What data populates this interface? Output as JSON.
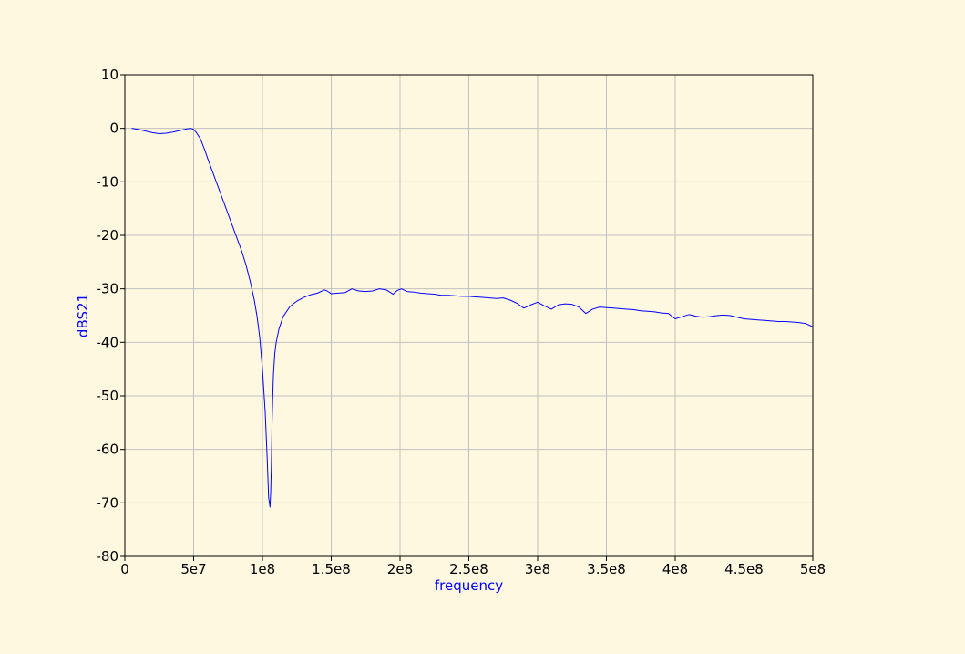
{
  "chart_data": {
    "type": "line",
    "title": "",
    "xlabel": "frequency",
    "ylabel": "dBS21",
    "xlim": [
      0,
      500000000
    ],
    "ylim": [
      -80,
      10
    ],
    "grid": true,
    "label_color": "#0000ff",
    "plot_bg": "#fff8e1",
    "grid_color": "#c0c0c0",
    "x_ticks": [
      0,
      50000000,
      100000000,
      150000000,
      200000000,
      250000000,
      300000000,
      350000000,
      400000000,
      450000000,
      500000000
    ],
    "x_tick_labels": [
      "0",
      "5e7",
      "1e8",
      "1.5e8",
      "2e8",
      "2.5e8",
      "3e8",
      "3.5e8",
      "4e8",
      "4.5e8",
      "5e8"
    ],
    "y_ticks": [
      10,
      0,
      -10,
      -20,
      -30,
      -40,
      -50,
      -60,
      -70,
      -80
    ],
    "y_tick_labels": [
      "10",
      "0",
      "-10",
      "-20",
      "-30",
      "-40",
      "-50",
      "-60",
      "-70",
      "-80"
    ],
    "series": [
      {
        "color": "#0000ff",
        "x": [
          5000000,
          10000000,
          15000000,
          20000000,
          25000000,
          30000000,
          35000000,
          40000000,
          45000000,
          48000000,
          50000000,
          52000000,
          55000000,
          58000000,
          60000000,
          65000000,
          70000000,
          75000000,
          80000000,
          85000000,
          88000000,
          91000000,
          94000000,
          96000000,
          98000000,
          100000000,
          102000000,
          103500000,
          104500000,
          105500000,
          106000000,
          106500000,
          107000000,
          107500000,
          108000000,
          109000000,
          110000000,
          112000000,
          115000000,
          120000000,
          125000000,
          130000000,
          135000000,
          140000000,
          145000000,
          147000000,
          150000000,
          155000000,
          160000000,
          165000000,
          170000000,
          175000000,
          180000000,
          185000000,
          190000000,
          195000000,
          198000000,
          201000000,
          205000000,
          210000000,
          215000000,
          220000000,
          225000000,
          230000000,
          235000000,
          240000000,
          245000000,
          250000000,
          255000000,
          260000000,
          265000000,
          270000000,
          275000000,
          280000000,
          285000000,
          290000000,
          295000000,
          300000000,
          305000000,
          310000000,
          315000000,
          320000000,
          325000000,
          330000000,
          335000000,
          340000000,
          345000000,
          350000000,
          355000000,
          360000000,
          365000000,
          370000000,
          375000000,
          380000000,
          385000000,
          390000000,
          395000000,
          400000000,
          405000000,
          410000000,
          415000000,
          420000000,
          425000000,
          430000000,
          435000000,
          440000000,
          445000000,
          450000000,
          455000000,
          460000000,
          465000000,
          470000000,
          475000000,
          480000000,
          485000000,
          490000000,
          495000000,
          500000000
        ],
        "values": [
          0,
          -0.2,
          -0.5,
          -0.8,
          -1.0,
          -0.9,
          -0.7,
          -0.4,
          -0.1,
          0,
          -0.2,
          -0.8,
          -2,
          -4,
          -5.5,
          -9,
          -12.5,
          -16,
          -19.5,
          -23,
          -25.5,
          -28.5,
          -32,
          -35,
          -39,
          -45,
          -53,
          -62,
          -69,
          -70.8,
          -68,
          -63,
          -55,
          -50,
          -46,
          -42,
          -40,
          -37.5,
          -35.2,
          -33.3,
          -32.3,
          -31.6,
          -31.1,
          -30.8,
          -30.2,
          -30.4,
          -30.9,
          -30.8,
          -30.7,
          -30.0,
          -30.4,
          -30.5,
          -30.4,
          -30.0,
          -30.2,
          -31.0,
          -30.3,
          -30.0,
          -30.5,
          -30.6,
          -30.8,
          -30.9,
          -31.0,
          -31.2,
          -31.2,
          -31.3,
          -31.4,
          -31.4,
          -31.5,
          -31.6,
          -31.7,
          -31.8,
          -31.7,
          -32.1,
          -32.7,
          -33.6,
          -33.0,
          -32.5,
          -33.2,
          -33.8,
          -33.0,
          -32.8,
          -32.9,
          -33.4,
          -34.6,
          -33.8,
          -33.4,
          -33.5,
          -33.6,
          -33.7,
          -33.8,
          -33.9,
          -34.1,
          -34.2,
          -34.3,
          -34.5,
          -34.6,
          -35.6,
          -35.2,
          -34.8,
          -35.1,
          -35.3,
          -35.2,
          -35.0,
          -34.9,
          -35.0,
          -35.3,
          -35.6,
          -35.7,
          -35.8,
          -35.9,
          -36.0,
          -36.1,
          -36.1,
          -36.2,
          -36.3,
          -36.5,
          -37.1
        ]
      }
    ]
  }
}
